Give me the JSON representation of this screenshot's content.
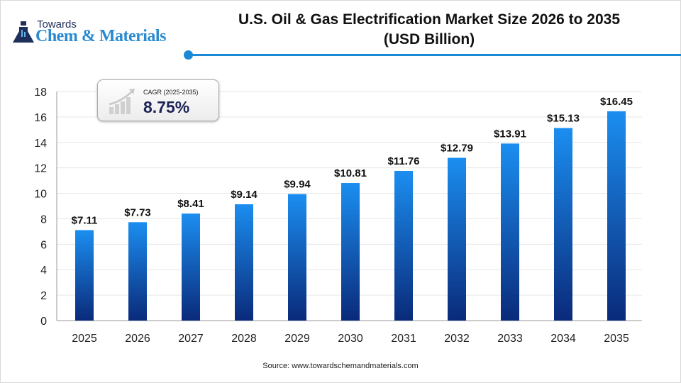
{
  "logo": {
    "line1": "Towards",
    "line2": "Chem & Materials"
  },
  "title_line1": "U.S. Oil & Gas Electrification Market Size 2026 to 2035",
  "title_line2": "(USD Billion)",
  "cagr": {
    "label": "CAGR (2025-2035)",
    "value": "8.75%"
  },
  "source": "Source: www.towardschemandmaterials.com",
  "colors": {
    "bar_top": "#1b8ef0",
    "bar_bottom": "#0a2a7a",
    "accent": "#1b8ad6"
  },
  "chart_data": {
    "type": "bar",
    "title": "U.S. Oil & Gas Electrification Market Size 2026 to 2035 (USD Billion)",
    "xlabel": "",
    "ylabel": "",
    "categories": [
      "2025",
      "2026",
      "2027",
      "2028",
      "2029",
      "2030",
      "2031",
      "2032",
      "2033",
      "2034",
      "2035"
    ],
    "values": [
      7.11,
      7.73,
      8.41,
      9.14,
      9.94,
      10.81,
      11.76,
      12.79,
      13.91,
      15.13,
      16.45
    ],
    "data_labels": [
      "$7.11",
      "$7.73",
      "$8.41",
      "$9.14",
      "$9.94",
      "$10.81",
      "$11.76",
      "$12.79",
      "$13.91",
      "$15.13",
      "$16.45"
    ],
    "ylim": [
      0,
      18
    ],
    "yticks": [
      0,
      2,
      4,
      6,
      8,
      10,
      12,
      14,
      16,
      18
    ],
    "grid": true
  }
}
